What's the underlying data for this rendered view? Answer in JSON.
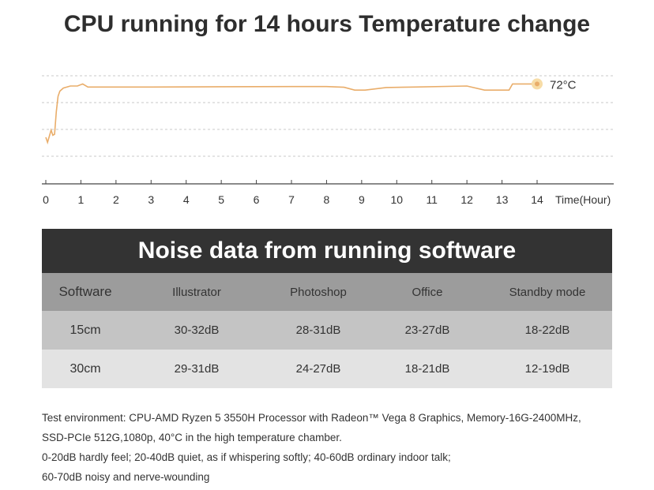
{
  "chart_data": {
    "type": "line",
    "title": "CPU running for 14 hours Temperature change",
    "xlabel": "Time(Hour)",
    "ylabel": "",
    "x_ticks": [
      0,
      1,
      2,
      3,
      4,
      5,
      6,
      7,
      8,
      9,
      10,
      11,
      12,
      13,
      14
    ],
    "xlim": [
      0,
      14
    ],
    "ylim": [
      0,
      100
    ],
    "grid": "horizontal dashed",
    "series": [
      {
        "color": "#e9ad6a",
        "x": [
          0,
          0.05,
          0.15,
          0.2,
          0.25,
          0.3,
          0.35,
          0.4,
          0.5,
          0.7,
          0.9,
          1.05,
          1.2,
          1.5,
          3,
          5,
          7,
          8,
          8.5,
          8.8,
          9.1,
          9.7,
          10.5,
          12,
          12.5,
          13.2,
          13.3,
          14
        ],
        "y": [
          20,
          15,
          27,
          22,
          23,
          45,
          60,
          65,
          68,
          70,
          70,
          72,
          69,
          69,
          69,
          69.3,
          69.5,
          69.5,
          68.8,
          66,
          66,
          68.5,
          69,
          70,
          66,
          66,
          72,
          72
        ],
        "end_label": "72°C"
      }
    ]
  },
  "noise_table": {
    "title": "Noise data from running software",
    "headers": [
      "Software",
      "Illustrator",
      "Photoshop",
      "Office",
      "Standby mode"
    ],
    "rows": [
      [
        "15cm",
        "30-32dB",
        "28-31dB",
        "23-27dB",
        "18-22dB"
      ],
      [
        "30cm",
        "29-31dB",
        "24-27dB",
        "18-21dB",
        "12-19dB"
      ]
    ]
  },
  "notes": [
    "Test environment: CPU-AMD Ryzen 5 3550H Processor with Radeon™ Vega 8 Graphics,  Memory-16G-2400MHz,",
    "SSD-PCIe 512G,1080p, 40°C in the high temperature chamber.",
    "0-20dB hardly feel; 20-40dB quiet, as if whispering softly; 40-60dB ordinary indoor talk;",
    "60-70dB noisy and nerve-wounding"
  ]
}
